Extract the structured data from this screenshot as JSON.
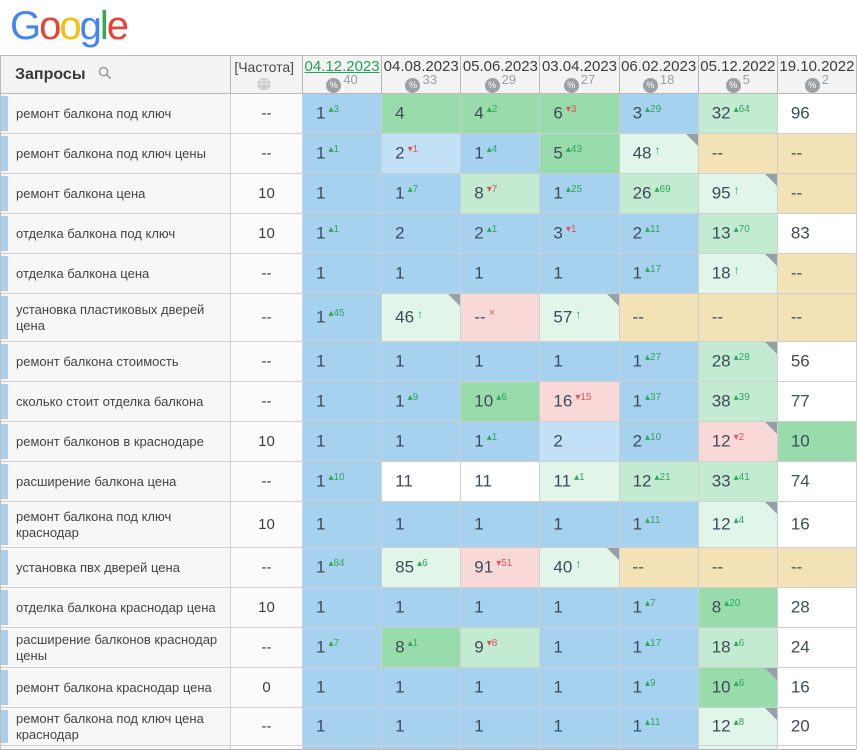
{
  "logo": {
    "letters": [
      {
        "ch": "G",
        "color": "#4285F4"
      },
      {
        "ch": "o",
        "color": "#EA4335"
      },
      {
        "ch": "o",
        "color": "#FBBC05"
      },
      {
        "ch": "g",
        "color": "#4285F4"
      },
      {
        "ch": "l",
        "color": "#34A853"
      },
      {
        "ch": "e",
        "color": "#EA4335"
      }
    ]
  },
  "palette": {
    "blue": "#a6d2ef",
    "lightblue": "#c2e0f6",
    "green": "#97dcaa",
    "lightgreen": "#c3ebd1",
    "palegreen": "#e1f5e9",
    "pink": "#f8d9d8",
    "tan": "#f2e2b6",
    "white": "#ffffff",
    "up_color": "#2fa75c",
    "down_color": "#e25555",
    "selected_date_color": "#21a258",
    "row_strip": "#a9cfec"
  },
  "header": {
    "queries_label": "Запросы",
    "frequency_label": "[Частота]",
    "columns": [
      {
        "date": "04.12.2023",
        "count": "40",
        "selected": true
      },
      {
        "date": "04.08.2023",
        "count": "33",
        "selected": false
      },
      {
        "date": "05.06.2023",
        "count": "29",
        "selected": false
      },
      {
        "date": "03.04.2023",
        "count": "27",
        "selected": false
      },
      {
        "date": "06.02.2023",
        "count": "18",
        "selected": false
      },
      {
        "date": "05.12.2022",
        "count": "5",
        "selected": false
      },
      {
        "date": "19.10.2022",
        "count": "2",
        "selected": false
      }
    ]
  },
  "rows": [
    {
      "keyword": "ремонт балкона под ключ",
      "frequency": "--",
      "cells": [
        {
          "v": "1",
          "sup": "3",
          "dir": "up",
          "bg": "blue"
        },
        {
          "v": "4",
          "bg": "green"
        },
        {
          "v": "4",
          "sup": "2",
          "dir": "up",
          "bg": "green"
        },
        {
          "v": "6",
          "sup": "3",
          "dir": "down",
          "bg": "green"
        },
        {
          "v": "3",
          "sup": "29",
          "dir": "up",
          "bg": "blue"
        },
        {
          "v": "32",
          "sup": "64",
          "dir": "up",
          "bg": "lightgreen"
        },
        {
          "v": "96",
          "bg": "white"
        }
      ]
    },
    {
      "keyword": "ремонт балкона под ключ цены",
      "frequency": "--",
      "cells": [
        {
          "v": "1",
          "sup": "1",
          "dir": "up",
          "bg": "blue"
        },
        {
          "v": "2",
          "sup": "1",
          "dir": "down",
          "bg": "lightblue"
        },
        {
          "v": "1",
          "sup": "4",
          "dir": "up",
          "bg": "blue"
        },
        {
          "v": "5",
          "sup": "43",
          "dir": "up",
          "bg": "green"
        },
        {
          "v": "48",
          "dir": "arrow",
          "bg": "palegreen",
          "corner": true
        },
        {
          "v": "--",
          "bg": "tan"
        },
        {
          "v": "--",
          "bg": "tan"
        }
      ]
    },
    {
      "keyword": "ремонт балкона цена",
      "frequency": "10",
      "cells": [
        {
          "v": "1",
          "bg": "blue"
        },
        {
          "v": "1",
          "sup": "7",
          "dir": "up",
          "bg": "blue"
        },
        {
          "v": "8",
          "sup": "7",
          "dir": "down",
          "bg": "lightgreen"
        },
        {
          "v": "1",
          "sup": "25",
          "dir": "up",
          "bg": "blue"
        },
        {
          "v": "26",
          "sup": "69",
          "dir": "up",
          "bg": "lightgreen"
        },
        {
          "v": "95",
          "dir": "arrow",
          "bg": "palegreen",
          "corner": true
        },
        {
          "v": "--",
          "bg": "tan"
        }
      ]
    },
    {
      "keyword": "отделка балкона под ключ",
      "frequency": "10",
      "cells": [
        {
          "v": "1",
          "sup": "1",
          "dir": "up",
          "bg": "blue"
        },
        {
          "v": "2",
          "bg": "blue"
        },
        {
          "v": "2",
          "sup": "1",
          "dir": "up",
          "bg": "blue"
        },
        {
          "v": "3",
          "sup": "1",
          "dir": "down",
          "bg": "blue"
        },
        {
          "v": "2",
          "sup": "11",
          "dir": "up",
          "bg": "blue"
        },
        {
          "v": "13",
          "sup": "70",
          "dir": "up",
          "bg": "lightgreen"
        },
        {
          "v": "83",
          "bg": "white"
        }
      ]
    },
    {
      "keyword": "отделка балкона цена",
      "frequency": "--",
      "cells": [
        {
          "v": "1",
          "bg": "blue"
        },
        {
          "v": "1",
          "bg": "blue"
        },
        {
          "v": "1",
          "bg": "blue"
        },
        {
          "v": "1",
          "bg": "blue"
        },
        {
          "v": "1",
          "sup": "17",
          "dir": "up",
          "bg": "blue"
        },
        {
          "v": "18",
          "dir": "arrow",
          "bg": "palegreen",
          "corner": true
        },
        {
          "v": "--",
          "bg": "tan"
        }
      ]
    },
    {
      "keyword": "установка пластиковых дверей цена",
      "frequency": "--",
      "cells": [
        {
          "v": "1",
          "sup": "45",
          "dir": "up",
          "bg": "blue"
        },
        {
          "v": "46",
          "dir": "arrow",
          "bg": "palegreen",
          "corner": true
        },
        {
          "v": "--",
          "dir": "x",
          "bg": "pink"
        },
        {
          "v": "57",
          "dir": "arrow",
          "bg": "palegreen",
          "corner": true
        },
        {
          "v": "--",
          "bg": "tan"
        },
        {
          "v": "--",
          "bg": "tan"
        },
        {
          "v": "--",
          "bg": "tan"
        }
      ]
    },
    {
      "keyword": "ремонт балкона стоимость",
      "frequency": "--",
      "cells": [
        {
          "v": "1",
          "bg": "blue"
        },
        {
          "v": "1",
          "bg": "blue"
        },
        {
          "v": "1",
          "bg": "blue"
        },
        {
          "v": "1",
          "bg": "blue"
        },
        {
          "v": "1",
          "sup": "27",
          "dir": "up",
          "bg": "blue"
        },
        {
          "v": "28",
          "sup": "28",
          "dir": "up",
          "bg": "lightgreen",
          "corner": true
        },
        {
          "v": "56",
          "bg": "white"
        }
      ]
    },
    {
      "keyword": "сколько стоит отделка балкона",
      "frequency": "--",
      "cells": [
        {
          "v": "1",
          "bg": "blue"
        },
        {
          "v": "1",
          "sup": "9",
          "dir": "up",
          "bg": "blue"
        },
        {
          "v": "10",
          "sup": "6",
          "dir": "up",
          "bg": "green"
        },
        {
          "v": "16",
          "sup": "15",
          "dir": "down",
          "bg": "pink"
        },
        {
          "v": "1",
          "sup": "37",
          "dir": "up",
          "bg": "blue"
        },
        {
          "v": "38",
          "sup": "39",
          "dir": "up",
          "bg": "lightgreen"
        },
        {
          "v": "77",
          "bg": "white"
        }
      ]
    },
    {
      "keyword": "ремонт балконов в краснодаре",
      "frequency": "10",
      "cells": [
        {
          "v": "1",
          "bg": "blue"
        },
        {
          "v": "1",
          "bg": "blue"
        },
        {
          "v": "1",
          "sup": "1",
          "dir": "up",
          "bg": "blue"
        },
        {
          "v": "2",
          "bg": "lightblue"
        },
        {
          "v": "2",
          "sup": "10",
          "dir": "up",
          "bg": "blue"
        },
        {
          "v": "12",
          "sup": "2",
          "dir": "down",
          "bg": "pink",
          "corner": true
        },
        {
          "v": "10",
          "bg": "green"
        }
      ]
    },
    {
      "keyword": "расширение балкона цена",
      "frequency": "--",
      "cells": [
        {
          "v": "1",
          "sup": "10",
          "dir": "up",
          "bg": "blue"
        },
        {
          "v": "11",
          "bg": "white"
        },
        {
          "v": "11",
          "bg": "white"
        },
        {
          "v": "11",
          "sup": "1",
          "dir": "up",
          "bg": "palegreen"
        },
        {
          "v": "12",
          "sup": "21",
          "dir": "up",
          "bg": "lightgreen"
        },
        {
          "v": "33",
          "sup": "41",
          "dir": "up",
          "bg": "lightgreen"
        },
        {
          "v": "74",
          "bg": "white"
        }
      ]
    },
    {
      "keyword": "ремонт балкона под ключ краснодар",
      "frequency": "10",
      "cells": [
        {
          "v": "1",
          "bg": "blue"
        },
        {
          "v": "1",
          "bg": "blue"
        },
        {
          "v": "1",
          "bg": "blue"
        },
        {
          "v": "1",
          "bg": "blue"
        },
        {
          "v": "1",
          "sup": "11",
          "dir": "up",
          "bg": "blue"
        },
        {
          "v": "12",
          "sup": "4",
          "dir": "up",
          "bg": "palegreen",
          "corner": true
        },
        {
          "v": "16",
          "bg": "white"
        }
      ]
    },
    {
      "keyword": "установка пвх дверей цена",
      "frequency": "--",
      "cells": [
        {
          "v": "1",
          "sup": "84",
          "dir": "up",
          "bg": "blue"
        },
        {
          "v": "85",
          "sup": "6",
          "dir": "up",
          "bg": "palegreen"
        },
        {
          "v": "91",
          "sup": "51",
          "dir": "down",
          "bg": "pink"
        },
        {
          "v": "40",
          "dir": "arrow",
          "bg": "palegreen",
          "corner": true
        },
        {
          "v": "--",
          "bg": "tan"
        },
        {
          "v": "--",
          "bg": "tan"
        },
        {
          "v": "--",
          "bg": "tan"
        }
      ]
    },
    {
      "keyword": "отделка балкона краснодар цена",
      "frequency": "10",
      "cells": [
        {
          "v": "1",
          "bg": "blue"
        },
        {
          "v": "1",
          "bg": "blue"
        },
        {
          "v": "1",
          "bg": "blue"
        },
        {
          "v": "1",
          "bg": "blue"
        },
        {
          "v": "1",
          "sup": "7",
          "dir": "up",
          "bg": "blue"
        },
        {
          "v": "8",
          "sup": "20",
          "dir": "up",
          "bg": "green"
        },
        {
          "v": "28",
          "bg": "white"
        }
      ]
    },
    {
      "keyword": "расширение балконов краснодар цены",
      "frequency": "--",
      "cells": [
        {
          "v": "1",
          "sup": "7",
          "dir": "up",
          "bg": "blue"
        },
        {
          "v": "8",
          "sup": "1",
          "dir": "up",
          "bg": "green"
        },
        {
          "v": "9",
          "sup": "8",
          "dir": "down",
          "bg": "lightgreen"
        },
        {
          "v": "1",
          "bg": "blue"
        },
        {
          "v": "1",
          "sup": "17",
          "dir": "up",
          "bg": "blue"
        },
        {
          "v": "18",
          "sup": "6",
          "dir": "up",
          "bg": "lightgreen"
        },
        {
          "v": "24",
          "bg": "white"
        }
      ]
    },
    {
      "keyword": "ремонт балкона краснодар цена",
      "frequency": "0",
      "cells": [
        {
          "v": "1",
          "bg": "blue"
        },
        {
          "v": "1",
          "bg": "blue"
        },
        {
          "v": "1",
          "bg": "blue"
        },
        {
          "v": "1",
          "bg": "blue"
        },
        {
          "v": "1",
          "sup": "9",
          "dir": "up",
          "bg": "blue"
        },
        {
          "v": "10",
          "sup": "6",
          "dir": "up",
          "bg": "green",
          "corner": true
        },
        {
          "v": "16",
          "bg": "white"
        }
      ]
    },
    {
      "keyword": "ремонт балкона под ключ цена краснодар",
      "frequency": "--",
      "cells": [
        {
          "v": "1",
          "bg": "blue"
        },
        {
          "v": "1",
          "bg": "blue"
        },
        {
          "v": "1",
          "bg": "blue"
        },
        {
          "v": "1",
          "bg": "blue"
        },
        {
          "v": "1",
          "sup": "11",
          "dir": "up",
          "bg": "blue"
        },
        {
          "v": "12",
          "sup": "8",
          "dir": "up",
          "bg": "palegreen",
          "corner": true
        },
        {
          "v": "20",
          "bg": "white"
        }
      ]
    }
  ],
  "partial_row": {
    "cells": [
      "blue",
      "blue",
      "blue",
      "blue",
      "blue",
      "palegreen",
      "white"
    ]
  }
}
